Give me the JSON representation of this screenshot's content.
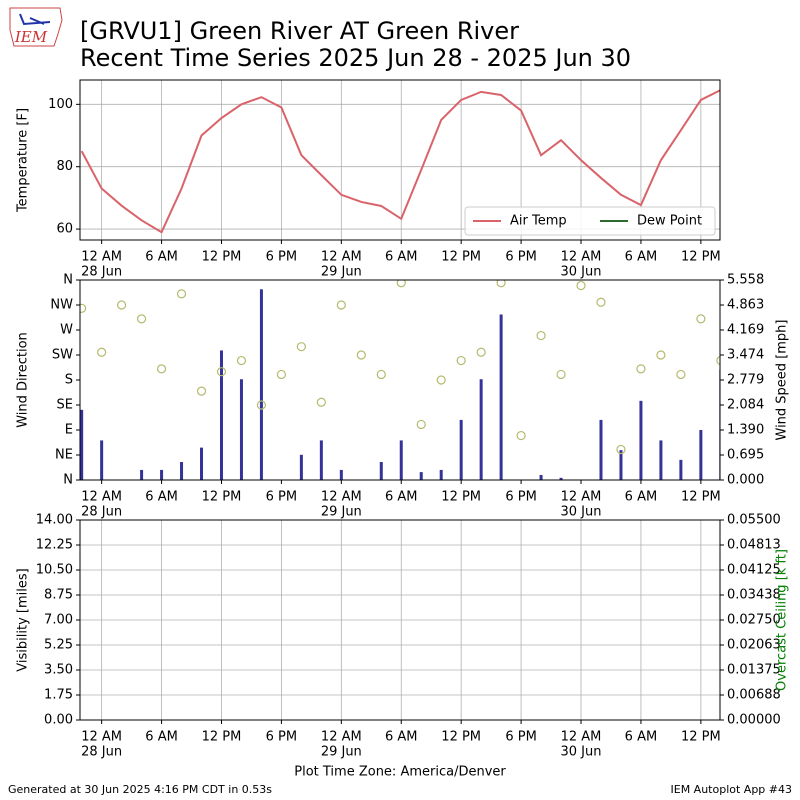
{
  "title": "[GRVU1] Green River  AT Green River",
  "subtitle": "Recent Time Series 2025 Jun 28 - 2025 Jun 30",
  "logo": "IEM",
  "xlabel": "Plot Time Zone: America/Denver",
  "footer_left": "Generated at 30 Jun 2025 4:16 PM CDT in 0.53s",
  "footer_right": "IEM Autoplot App #43",
  "chart_data": [
    {
      "type": "line",
      "ylabel": "Temperature [F]",
      "grid": true,
      "legend": "lower right",
      "xlim": [
        "2025-06-27T21:50",
        "2025-06-30T13:55"
      ],
      "xticks": [
        {
          "value": "2025-06-28T00:00",
          "label": "12 AM",
          "date": "28 Jun"
        },
        {
          "value": "2025-06-28T06:00",
          "label": "6 AM"
        },
        {
          "value": "2025-06-28T12:00",
          "label": "12 PM"
        },
        {
          "value": "2025-06-28T18:00",
          "label": "6 PM"
        },
        {
          "value": "2025-06-29T00:00",
          "label": "12 AM",
          "date": "29 Jun"
        },
        {
          "value": "2025-06-29T06:00",
          "label": "6 AM"
        },
        {
          "value": "2025-06-29T12:00",
          "label": "12 PM"
        },
        {
          "value": "2025-06-29T18:00",
          "label": "6 PM"
        },
        {
          "value": "2025-06-30T00:00",
          "label": "12 AM",
          "date": "30 Jun"
        },
        {
          "value": "2025-06-30T06:00",
          "label": "6 AM"
        },
        {
          "value": "2025-06-30T12:00",
          "label": "12 PM"
        }
      ],
      "ylim": [
        56.5,
        107.8
      ],
      "yticks": [
        60,
        80,
        100
      ],
      "x": [
        "2025-06-27T22:00",
        "2025-06-28T00:00",
        "2025-06-28T02:00",
        "2025-06-28T04:00",
        "2025-06-28T06:00",
        "2025-06-28T08:00",
        "2025-06-28T10:00",
        "2025-06-28T12:00",
        "2025-06-28T14:00",
        "2025-06-28T16:00",
        "2025-06-28T18:00",
        "2025-06-28T20:00",
        "2025-06-28T22:00",
        "2025-06-29T00:00",
        "2025-06-29T02:00",
        "2025-06-29T04:00",
        "2025-06-29T06:00",
        "2025-06-29T08:00",
        "2025-06-29T10:00",
        "2025-06-29T12:00",
        "2025-06-29T14:00",
        "2025-06-29T16:00",
        "2025-06-29T18:00",
        "2025-06-29T20:00",
        "2025-06-29T22:00",
        "2025-06-30T00:00",
        "2025-06-30T02:00",
        "2025-06-30T04:00",
        "2025-06-30T06:00",
        "2025-06-30T08:00",
        "2025-06-30T10:00",
        "2025-06-30T12:00",
        "2025-06-30T14:00"
      ],
      "series": [
        {
          "name": "Air Temp",
          "color": "#d9636a",
          "values": [
            85,
            73,
            67.5,
            62.8,
            59,
            73,
            90,
            95.6,
            100,
            102.3,
            99,
            83.7,
            77.3,
            71,
            68.7,
            67.4,
            63.3,
            79,
            95,
            101.4,
            104,
            103,
            98,
            83.7,
            88.5,
            82.1,
            76.4,
            71,
            67.7,
            82.1,
            91.7,
            101.4,
            104.6
          ]
        },
        {
          "name": "Dew Point",
          "color": "#2d6a2f",
          "values": [
            null,
            null,
            null,
            null,
            null,
            null,
            null,
            null,
            null,
            null,
            null,
            null,
            null,
            null,
            null,
            null,
            null,
            null,
            null,
            null,
            null,
            null,
            null,
            null,
            null,
            null,
            null,
            null,
            null,
            null,
            null,
            null,
            null
          ]
        }
      ]
    },
    {
      "type": "bar",
      "ylabel": "Wind Direction",
      "y2label": "Wind Speed [mph]",
      "grid": false,
      "xlim": [
        "2025-06-27T21:50",
        "2025-06-30T13:55"
      ],
      "xticks": [
        {
          "value": "2025-06-28T00:00",
          "label": "12 AM",
          "date": "28 Jun"
        },
        {
          "value": "2025-06-28T06:00",
          "label": "6 AM"
        },
        {
          "value": "2025-06-28T12:00",
          "label": "12 PM"
        },
        {
          "value": "2025-06-28T18:00",
          "label": "6 PM"
        },
        {
          "value": "2025-06-29T00:00",
          "label": "12 AM",
          "date": "29 Jun"
        },
        {
          "value": "2025-06-29T06:00",
          "label": "6 AM"
        },
        {
          "value": "2025-06-29T12:00",
          "label": "12 PM"
        },
        {
          "value": "2025-06-29T18:00",
          "label": "6 PM"
        },
        {
          "value": "2025-06-30T00:00",
          "label": "12 AM",
          "date": "30 Jun"
        },
        {
          "value": "2025-06-30T06:00",
          "label": "6 AM"
        },
        {
          "value": "2025-06-30T12:00",
          "label": "12 PM"
        }
      ],
      "ylim": [
        0,
        360
      ],
      "yticks": [
        {
          "value": 0,
          "label": "N"
        },
        {
          "value": 45,
          "label": "NE"
        },
        {
          "value": 90,
          "label": "E"
        },
        {
          "value": 135,
          "label": "SE"
        },
        {
          "value": 180,
          "label": "S"
        },
        {
          "value": 225,
          "label": "SW"
        },
        {
          "value": 270,
          "label": "W"
        },
        {
          "value": 315,
          "label": "NW"
        },
        {
          "value": 360,
          "label": "N"
        }
      ],
      "y2lim": [
        0,
        5.558
      ],
      "y2ticks": [
        {
          "value": 0,
          "label": "0.000"
        },
        0.695,
        {
          "value": 1.39,
          "label": "1.390"
        },
        2.084,
        2.779,
        3.474,
        4.169,
        4.863,
        5.558
      ],
      "x": [
        "2025-06-27T22:00",
        "2025-06-28T00:00",
        "2025-06-28T02:00",
        "2025-06-28T04:00",
        "2025-06-28T06:00",
        "2025-06-28T08:00",
        "2025-06-28T10:00",
        "2025-06-28T12:00",
        "2025-06-28T14:00",
        "2025-06-28T16:00",
        "2025-06-28T18:00",
        "2025-06-28T20:00",
        "2025-06-28T22:00",
        "2025-06-29T00:00",
        "2025-06-29T02:00",
        "2025-06-29T04:00",
        "2025-06-29T06:00",
        "2025-06-29T08:00",
        "2025-06-29T10:00",
        "2025-06-29T12:00",
        "2025-06-29T14:00",
        "2025-06-29T16:00",
        "2025-06-29T18:00",
        "2025-06-29T20:00",
        "2025-06-29T22:00",
        "2025-06-30T00:00",
        "2025-06-30T02:00",
        "2025-06-30T04:00",
        "2025-06-30T06:00",
        "2025-06-30T08:00",
        "2025-06-30T10:00",
        "2025-06-30T12:00",
        "2025-06-30T14:00"
      ],
      "series": [
        {
          "type": "bar",
          "axis": "y2",
          "color": "#333399",
          "values": [
            1.95,
            1.1,
            0,
            0.28,
            0.28,
            0.5,
            0.9,
            3.6,
            2.8,
            5.3,
            0,
            0.7,
            1.1,
            0.28,
            0,
            0.5,
            1.1,
            0.22,
            0.28,
            1.67,
            2.8,
            4.6,
            0,
            0.14,
            0.06,
            0,
            1.67,
            0.83,
            2.2,
            1.1,
            0.56,
            1.39,
            3.06
          ]
        },
        {
          "type": "scatter",
          "color": "#b5b96e",
          "values": [
            309,
            230,
            315,
            290,
            200,
            335,
            160,
            195,
            215,
            135,
            190,
            240,
            140,
            315,
            225,
            190,
            355,
            100,
            180,
            215,
            230,
            355,
            80,
            260,
            190,
            350,
            320,
            55,
            200,
            225,
            190,
            290,
            215
          ]
        }
      ]
    },
    {
      "type": "line",
      "ylabel": "Visibility [miles]",
      "y2label": "Overcast Ceiling [k ft]",
      "y2color": "#008000",
      "grid": true,
      "xlim": [
        "2025-06-27T21:50",
        "2025-06-30T13:55"
      ],
      "xticks": [
        {
          "value": "2025-06-28T00:00",
          "label": "12 AM",
          "date": "28 Jun"
        },
        {
          "value": "2025-06-28T06:00",
          "label": "6 AM"
        },
        {
          "value": "2025-06-28T12:00",
          "label": "12 PM"
        },
        {
          "value": "2025-06-28T18:00",
          "label": "6 PM"
        },
        {
          "value": "2025-06-29T00:00",
          "label": "12 AM",
          "date": "29 Jun"
        },
        {
          "value": "2025-06-29T06:00",
          "label": "6 AM"
        },
        {
          "value": "2025-06-29T12:00",
          "label": "12 PM"
        },
        {
          "value": "2025-06-29T18:00",
          "label": "6 PM"
        },
        {
          "value": "2025-06-30T00:00",
          "label": "12 AM",
          "date": "30 Jun"
        },
        {
          "value": "2025-06-30T06:00",
          "label": "6 AM"
        },
        {
          "value": "2025-06-30T12:00",
          "label": "12 PM"
        }
      ],
      "ylim": [
        0,
        14
      ],
      "yticks": [
        {
          "value": 0,
          "label": "0.00"
        },
        1.75,
        {
          "value": 3.5,
          "label": "3.50"
        },
        {
          "value": 5.25,
          "label": "5.25"
        },
        {
          "value": 7,
          "label": "7.00"
        },
        {
          "value": 8.75,
          "label": "8.75"
        },
        {
          "value": 10.5,
          "label": "10.50"
        },
        12.25,
        {
          "value": 14,
          "label": "14.00"
        }
      ],
      "y2lim": [
        0,
        0.055
      ],
      "y2ticks": [
        {
          "value": 0,
          "label": "0.00000"
        },
        {
          "value": 0.006875,
          "label": "0.00688"
        },
        {
          "value": 0.01375,
          "label": "0.01375"
        },
        {
          "value": 0.020625,
          "label": "0.02063"
        },
        {
          "value": 0.0275,
          "label": "0.02750"
        },
        {
          "value": 0.034375,
          "label": "0.03438"
        },
        {
          "value": 0.04125,
          "label": "0.04125"
        },
        {
          "value": 0.048125,
          "label": "0.04813"
        },
        {
          "value": 0.055,
          "label": "0.05500"
        }
      ],
      "series": []
    }
  ]
}
